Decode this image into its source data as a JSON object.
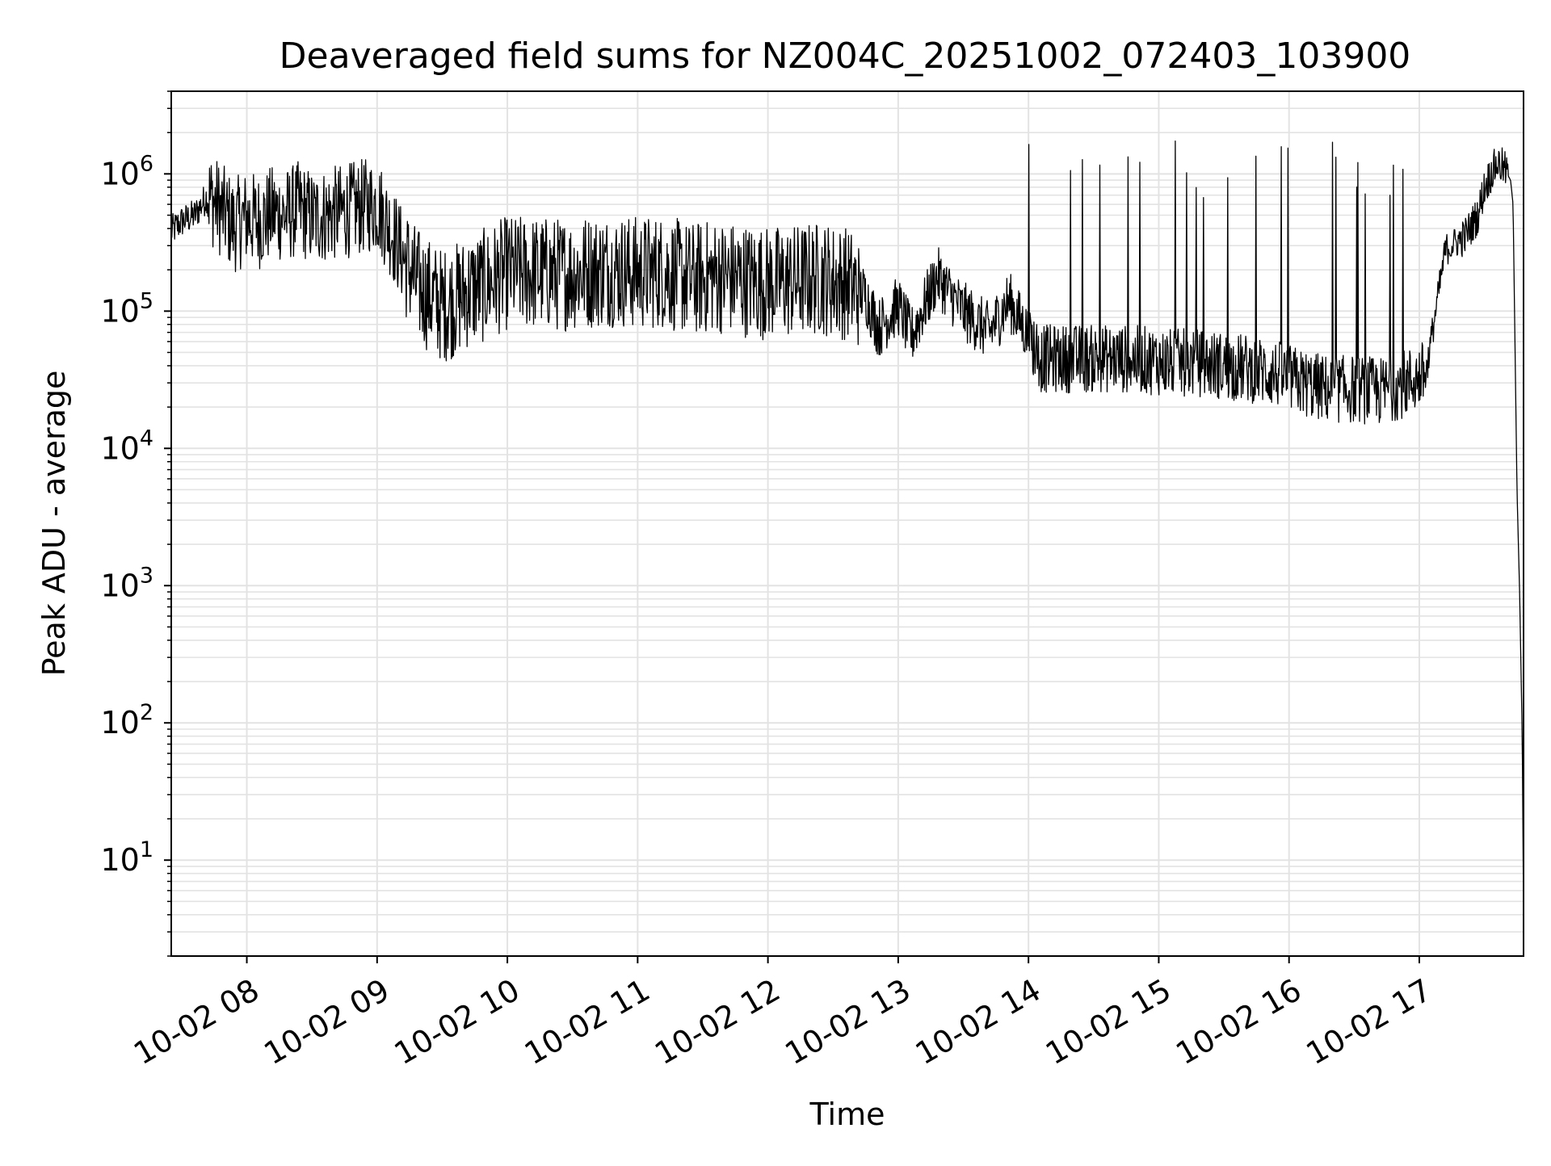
{
  "chart_data": {
    "type": "line",
    "title": "Deaveraged field sums for NZ004C_20251002_072403_103900",
    "xlabel": "Time",
    "ylabel": "Peak ADU - average",
    "yscale": "log",
    "x_unit": "hours since 10-02 00:00",
    "xlim": [
      7.42,
      17.8
    ],
    "ylim": [
      2,
      4000000
    ],
    "grid": true,
    "legend": "none",
    "line_color": "#000000",
    "grid_color": "#e3e3e3",
    "x_ticks": [
      {
        "value": 8,
        "label": "10-02 08"
      },
      {
        "value": 9,
        "label": "10-02 09"
      },
      {
        "value": 10,
        "label": "10-02 10"
      },
      {
        "value": 11,
        "label": "10-02 11"
      },
      {
        "value": 12,
        "label": "10-02 12"
      },
      {
        "value": 13,
        "label": "10-02 13"
      },
      {
        "value": 14,
        "label": "10-02 14"
      },
      {
        "value": 15,
        "label": "10-02 15"
      },
      {
        "value": 16,
        "label": "10-02 16"
      },
      {
        "value": 17,
        "label": "10-02 17"
      }
    ],
    "y_ticks": [
      {
        "value": 10,
        "base": "10",
        "exp": "1"
      },
      {
        "value": 100,
        "base": "10",
        "exp": "2"
      },
      {
        "value": 1000,
        "base": "10",
        "exp": "3"
      },
      {
        "value": 10000,
        "base": "10",
        "exp": "4"
      },
      {
        "value": 100000,
        "base": "10",
        "exp": "5"
      },
      {
        "value": 1000000,
        "base": "10",
        "exp": "6"
      }
    ],
    "series": [
      {
        "name": "Peak ADU - average",
        "x": [
          7.42,
          7.5,
          7.6,
          7.7,
          7.8,
          7.9,
          8.0,
          8.1,
          8.2,
          8.3,
          8.4,
          8.5,
          8.6,
          8.7,
          8.8,
          8.9,
          9.0,
          9.1,
          9.2,
          9.3,
          9.4,
          9.5,
          9.6,
          9.7,
          9.8,
          9.9,
          10.0,
          10.2,
          10.4,
          10.6,
          10.8,
          11.0,
          11.2,
          11.4,
          11.6,
          11.8,
          12.0,
          12.2,
          12.4,
          12.6,
          12.75,
          12.85,
          13.0,
          13.1,
          13.3,
          13.5,
          13.7,
          13.85,
          13.95,
          14.1,
          14.3,
          14.5,
          14.7,
          14.9,
          15.1,
          15.3,
          15.5,
          15.7,
          15.9,
          16.1,
          16.3,
          16.5,
          16.7,
          16.9,
          17.05,
          17.2,
          17.35,
          17.45,
          17.5,
          17.55,
          17.6,
          17.65,
          17.7,
          17.72,
          17.75,
          17.77,
          17.79,
          17.8
        ],
        "y": [
          380000,
          450000,
          500000,
          700000,
          550000,
          420000,
          480000,
          450000,
          520000,
          500000,
          560000,
          480000,
          500000,
          520000,
          550000,
          580000,
          600000,
          400000,
          250000,
          160000,
          130000,
          110000,
          120000,
          140000,
          150000,
          170000,
          190000,
          190000,
          185000,
          195000,
          200000,
          190000,
          195000,
          170000,
          180000,
          170000,
          160000,
          165000,
          175000,
          160000,
          130000,
          75000,
          110000,
          65000,
          180000,
          100000,
          70000,
          120000,
          80000,
          45000,
          45000,
          45000,
          45000,
          44000,
          42000,
          42000,
          40000,
          38000,
          35000,
          30000,
          27000,
          27000,
          26000,
          30000,
          35000,
          280000,
          350000,
          500000,
          800000,
          1000000,
          1200000,
          1100000,
          900000,
          600000,
          5000,
          900,
          80,
          4
        ]
      }
    ]
  }
}
